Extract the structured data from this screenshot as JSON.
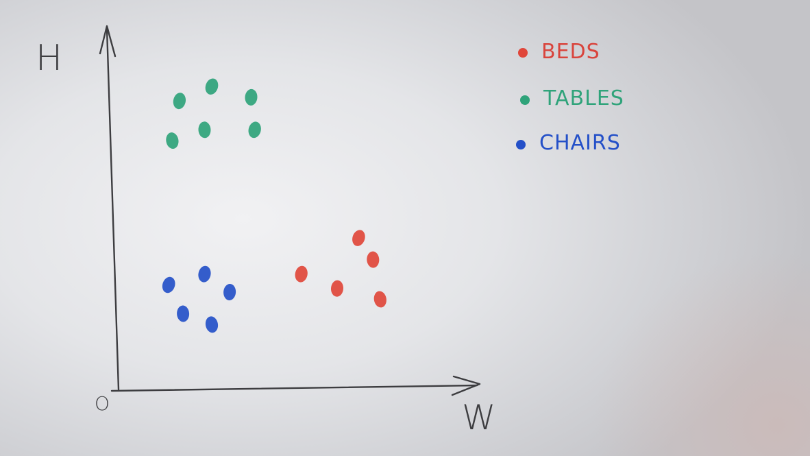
{
  "chart_data": {
    "type": "scatter",
    "title": "",
    "xlabel": "W",
    "ylabel": "H",
    "origin_label": "O",
    "xlim": [
      0,
      10
    ],
    "ylim": [
      0,
      10
    ],
    "grid": false,
    "legend_position": "top-right",
    "series": [
      {
        "name": "BEDS",
        "color": "#e0463a",
        "points": [
          {
            "x": 6.7,
            "y": 4.2
          },
          {
            "x": 5.1,
            "y": 3.2
          },
          {
            "x": 6.1,
            "y": 2.8
          },
          {
            "x": 7.1,
            "y": 3.6
          },
          {
            "x": 7.3,
            "y": 2.5
          }
        ]
      },
      {
        "name": "TABLES",
        "color": "#2fa37a",
        "points": [
          {
            "x": 2.6,
            "y": 8.4
          },
          {
            "x": 1.7,
            "y": 8.0
          },
          {
            "x": 3.7,
            "y": 8.1
          },
          {
            "x": 2.4,
            "y": 7.2
          },
          {
            "x": 1.5,
            "y": 6.9
          },
          {
            "x": 3.8,
            "y": 7.2
          }
        ]
      },
      {
        "name": "CHAIRS",
        "color": "#2450c8",
        "points": [
          {
            "x": 1.4,
            "y": 2.9
          },
          {
            "x": 2.4,
            "y": 3.2
          },
          {
            "x": 3.1,
            "y": 2.7
          },
          {
            "x": 1.8,
            "y": 2.1
          },
          {
            "x": 2.6,
            "y": 1.8
          }
        ]
      }
    ]
  }
}
